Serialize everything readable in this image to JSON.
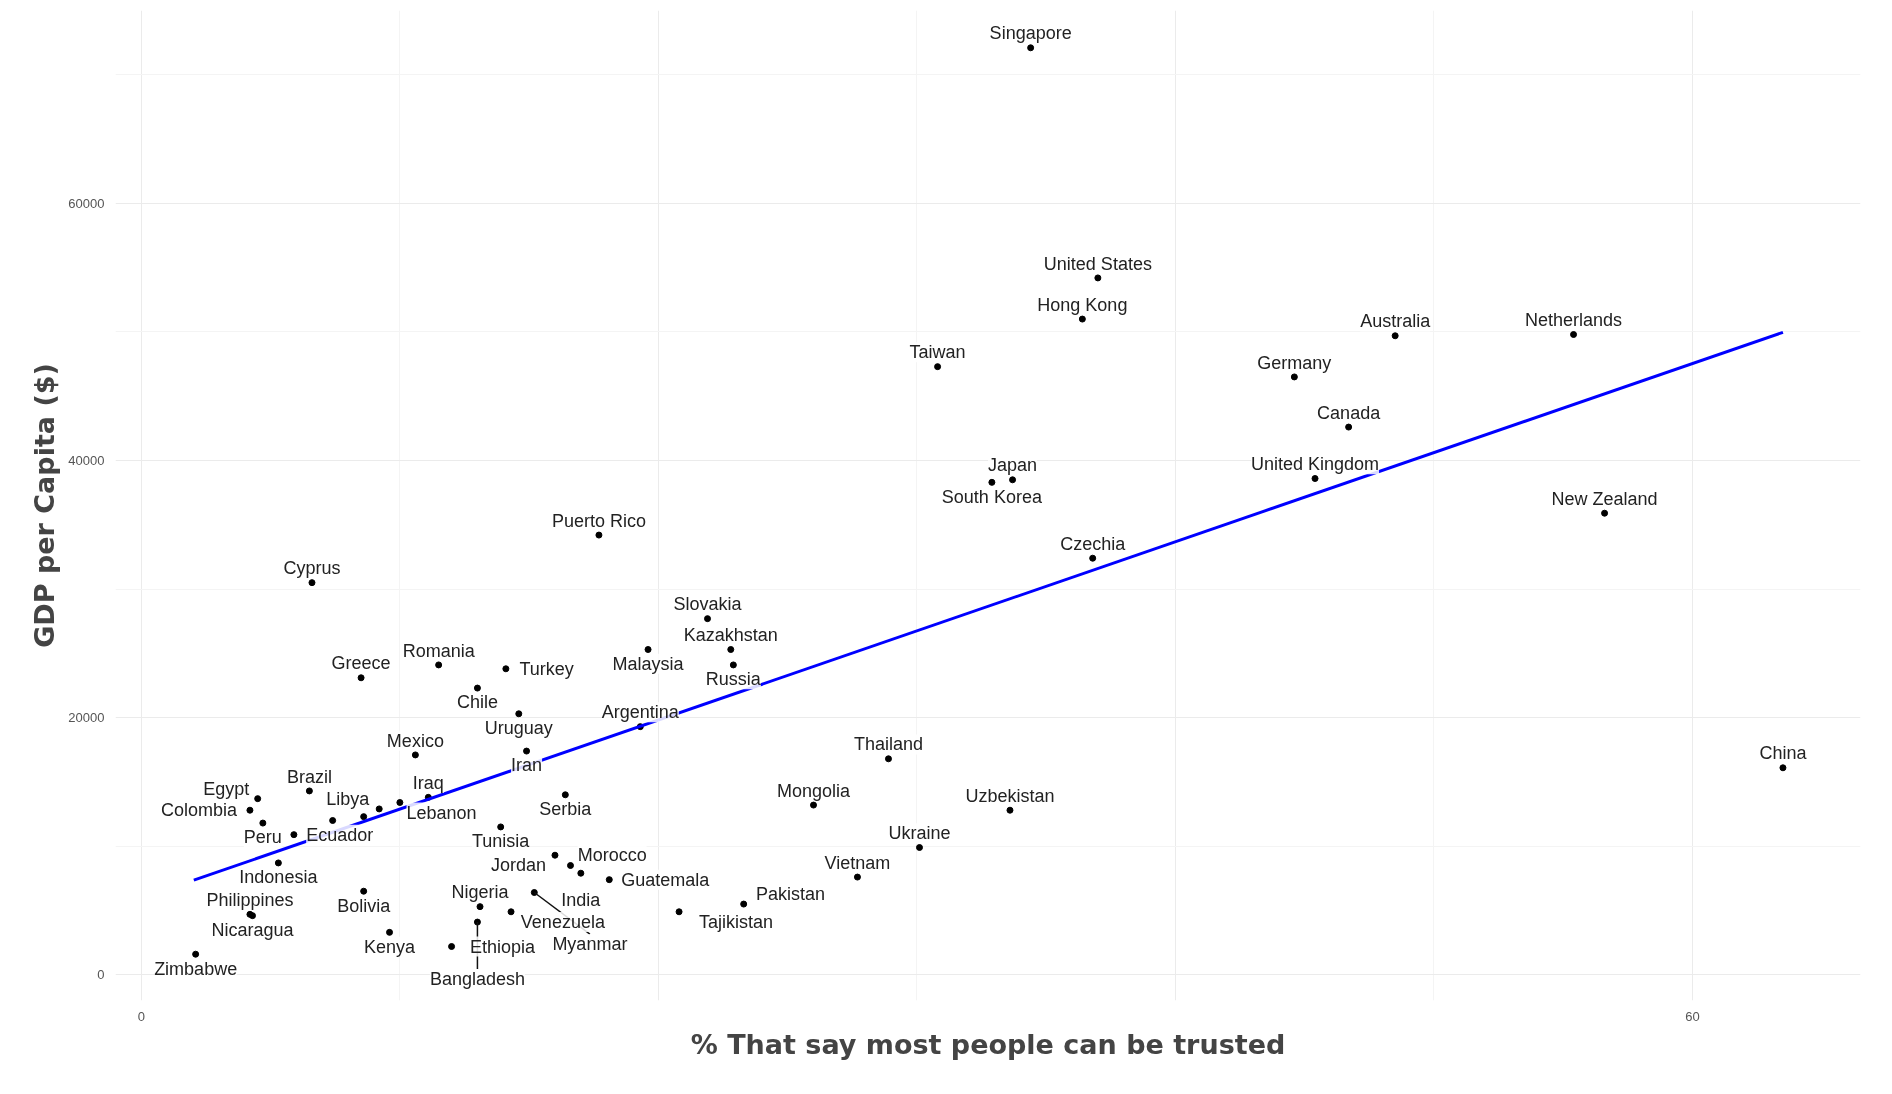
{
  "chart_data": {
    "type": "scatter",
    "xlabel": "% That say most people can be trusted",
    "ylabel": "GDP per Capita ($)",
    "xlim": [
      -1,
      66.5
    ],
    "ylim": [
      -2000,
      75000
    ],
    "xticks": [
      0,
      {
        "value": 20,
        "label": null
      },
      {
        "value": 40,
        "label": null
      },
      60
    ],
    "yticks": [
      0,
      20000,
      40000,
      60000
    ],
    "grid": true,
    "marker": "circle",
    "series": [
      {
        "color": "#000000",
        "x": [
          34.4,
          37.0,
          36.4,
          30.8,
          48.5,
          55.4,
          44.6,
          46.7,
          33.7,
          32.9,
          45.4,
          56.6,
          36.8,
          17.7,
          6.6,
          21.9,
          22.8,
          22.9,
          19.6,
          11.5,
          14.1,
          8.5,
          13.0,
          14.6,
          19.3,
          10.6,
          14.9,
          28.9,
          63.5,
          6.5,
          16.4,
          11.1,
          10.0,
          9.2,
          4.2,
          4.5,
          4.7,
          13.9,
          16.6,
          17.0,
          16.0,
          5.9,
          5.3,
          4.2,
          4.3,
          2.1,
          8.6,
          9.6,
          12.0,
          13.1,
          13.0,
          14.3,
          15.2,
          18.1,
          20.8,
          23.3,
          26.0,
          27.7,
          30.1,
          33.6,
          7.4,
          8.6
        ],
        "values": [
          72100,
          54200,
          51000,
          47300,
          49700,
          49800,
          46500,
          42600,
          38500,
          38300,
          38600,
          35900,
          32400,
          34200,
          30500,
          27700,
          25300,
          24100,
          25300,
          24100,
          23800,
          23100,
          22300,
          20300,
          19300,
          17100,
          17400,
          16800,
          16100,
          14300,
          14000,
          13800,
          13400,
          12900,
          12800,
          13700,
          11800,
          11500,
          8500,
          7900,
          9300,
          10900,
          8700,
          4700,
          4600,
          1600,
          6500,
          3300,
          2200,
          5300,
          4100,
          4900,
          6400,
          7400,
          4900,
          5500,
          13200,
          7600,
          9900,
          12800,
          12000,
          12300
        ]
      },
      {
        "type": "line",
        "marker": "none",
        "color": "#0000ff",
        "x": [
          2.03,
          63.5
        ],
        "values": [
          7360,
          49970
        ]
      }
    ],
    "annotations": [
      {
        "text": "Singapore",
        "x": 34.4,
        "y": 72100
      },
      {
        "text": "United States",
        "x": 37.0,
        "y": 54200
      },
      {
        "text": "Hong Kong",
        "x": 36.4,
        "y": 51000
      },
      {
        "text": "Taiwan",
        "x": 30.8,
        "y": 47300
      },
      {
        "text": "Australia",
        "x": 48.5,
        "y": 49700
      },
      {
        "text": "Netherlands",
        "x": 55.4,
        "y": 49800
      },
      {
        "text": "Germany",
        "x": 44.6,
        "y": 46500
      },
      {
        "text": "Canada",
        "x": 46.7,
        "y": 42600
      },
      {
        "text": "Japan",
        "x": 33.7,
        "y": 38500
      },
      {
        "text": "South Korea",
        "x": 32.9,
        "y": 38300
      },
      {
        "text": "United Kingdom",
        "x": 45.4,
        "y": 38600
      },
      {
        "text": "New Zealand",
        "x": 56.6,
        "y": 35900
      },
      {
        "text": "Czechia",
        "x": 36.8,
        "y": 32400
      },
      {
        "text": "Puerto Rico",
        "x": 17.7,
        "y": 34200
      },
      {
        "text": "Cyprus",
        "x": 6.6,
        "y": 30500
      },
      {
        "text": "Slovakia",
        "x": 21.9,
        "y": 27700
      },
      {
        "text": "Kazakhstan",
        "x": 22.8,
        "y": 25300
      },
      {
        "text": "Russia",
        "x": 22.9,
        "y": 24100
      },
      {
        "text": "Malaysia",
        "x": 19.6,
        "y": 25300
      },
      {
        "text": "Romania",
        "x": 11.5,
        "y": 24100
      },
      {
        "text": "Turkey",
        "x": 14.1,
        "y": 23800
      },
      {
        "text": "Greece",
        "x": 8.5,
        "y": 23100
      },
      {
        "text": "Chile",
        "x": 13.0,
        "y": 22300
      },
      {
        "text": "Uruguay",
        "x": 14.6,
        "y": 20300
      },
      {
        "text": "Argentina",
        "x": 19.3,
        "y": 19300
      },
      {
        "text": "Mexico",
        "x": 10.6,
        "y": 17100
      },
      {
        "text": "Iran",
        "x": 14.9,
        "y": 17400
      },
      {
        "text": "Thailand",
        "x": 28.9,
        "y": 16800
      },
      {
        "text": "China",
        "x": 63.5,
        "y": 16100
      },
      {
        "text": "Brazil",
        "x": 6.5,
        "y": 14300
      },
      {
        "text": "Serbia",
        "x": 16.4,
        "y": 14000
      },
      {
        "text": "Iraq",
        "x": 11.1,
        "y": 13800
      },
      {
        "text": "Lebanon",
        "x": 10.0,
        "y": 13400
      },
      {
        "text": "Libya",
        "x": 9.2,
        "y": 12900
      },
      {
        "text": "Colombia",
        "x": 4.2,
        "y": 12800
      },
      {
        "text": "Egypt",
        "x": 4.5,
        "y": 13700
      },
      {
        "text": "Peru",
        "x": 4.7,
        "y": 11800
      },
      {
        "text": "Tunisia",
        "x": 13.9,
        "y": 11500
      },
      {
        "text": "Morocco",
        "x": 16.6,
        "y": 8500
      },
      {
        "text": "India",
        "x": 17.0,
        "y": 7900
      },
      {
        "text": "Jordan",
        "x": 16.0,
        "y": 9300
      },
      {
        "text": "Ecuador",
        "x": 5.9,
        "y": 10900
      },
      {
        "text": "Indonesia",
        "x": 5.3,
        "y": 8700
      },
      {
        "text": "Philippines",
        "x": 4.2,
        "y": 4700
      },
      {
        "text": "Nicaragua",
        "x": 4.3,
        "y": 4600
      },
      {
        "text": "Zimbabwe",
        "x": 2.1,
        "y": 1600
      },
      {
        "text": "Bolivia",
        "x": 8.6,
        "y": 6500
      },
      {
        "text": "Kenya",
        "x": 9.6,
        "y": 3300
      },
      {
        "text": "Ethiopia",
        "x": 12.0,
        "y": 2200
      },
      {
        "text": "Nigeria",
        "x": 13.1,
        "y": 5300
      },
      {
        "text": "Bangladesh",
        "x": 13.0,
        "y": 4100
      },
      {
        "text": "Venezuela",
        "x": 14.3,
        "y": 4900
      },
      {
        "text": "Myanmar",
        "x": 15.2,
        "y": 6400
      },
      {
        "text": "Guatemala",
        "x": 18.1,
        "y": 7400
      },
      {
        "text": "Tajikistan",
        "x": 20.8,
        "y": 4900
      },
      {
        "text": "Pakistan",
        "x": 23.3,
        "y": 5500
      },
      {
        "text": "Mongolia",
        "x": 26.0,
        "y": 13200
      },
      {
        "text": "Vietnam",
        "x": 27.7,
        "y": 7600
      },
      {
        "text": "Ukraine",
        "x": 30.1,
        "y": 9900
      },
      {
        "text": "Uzbekistan",
        "x": 33.6,
        "y": 12800
      }
    ]
  }
}
